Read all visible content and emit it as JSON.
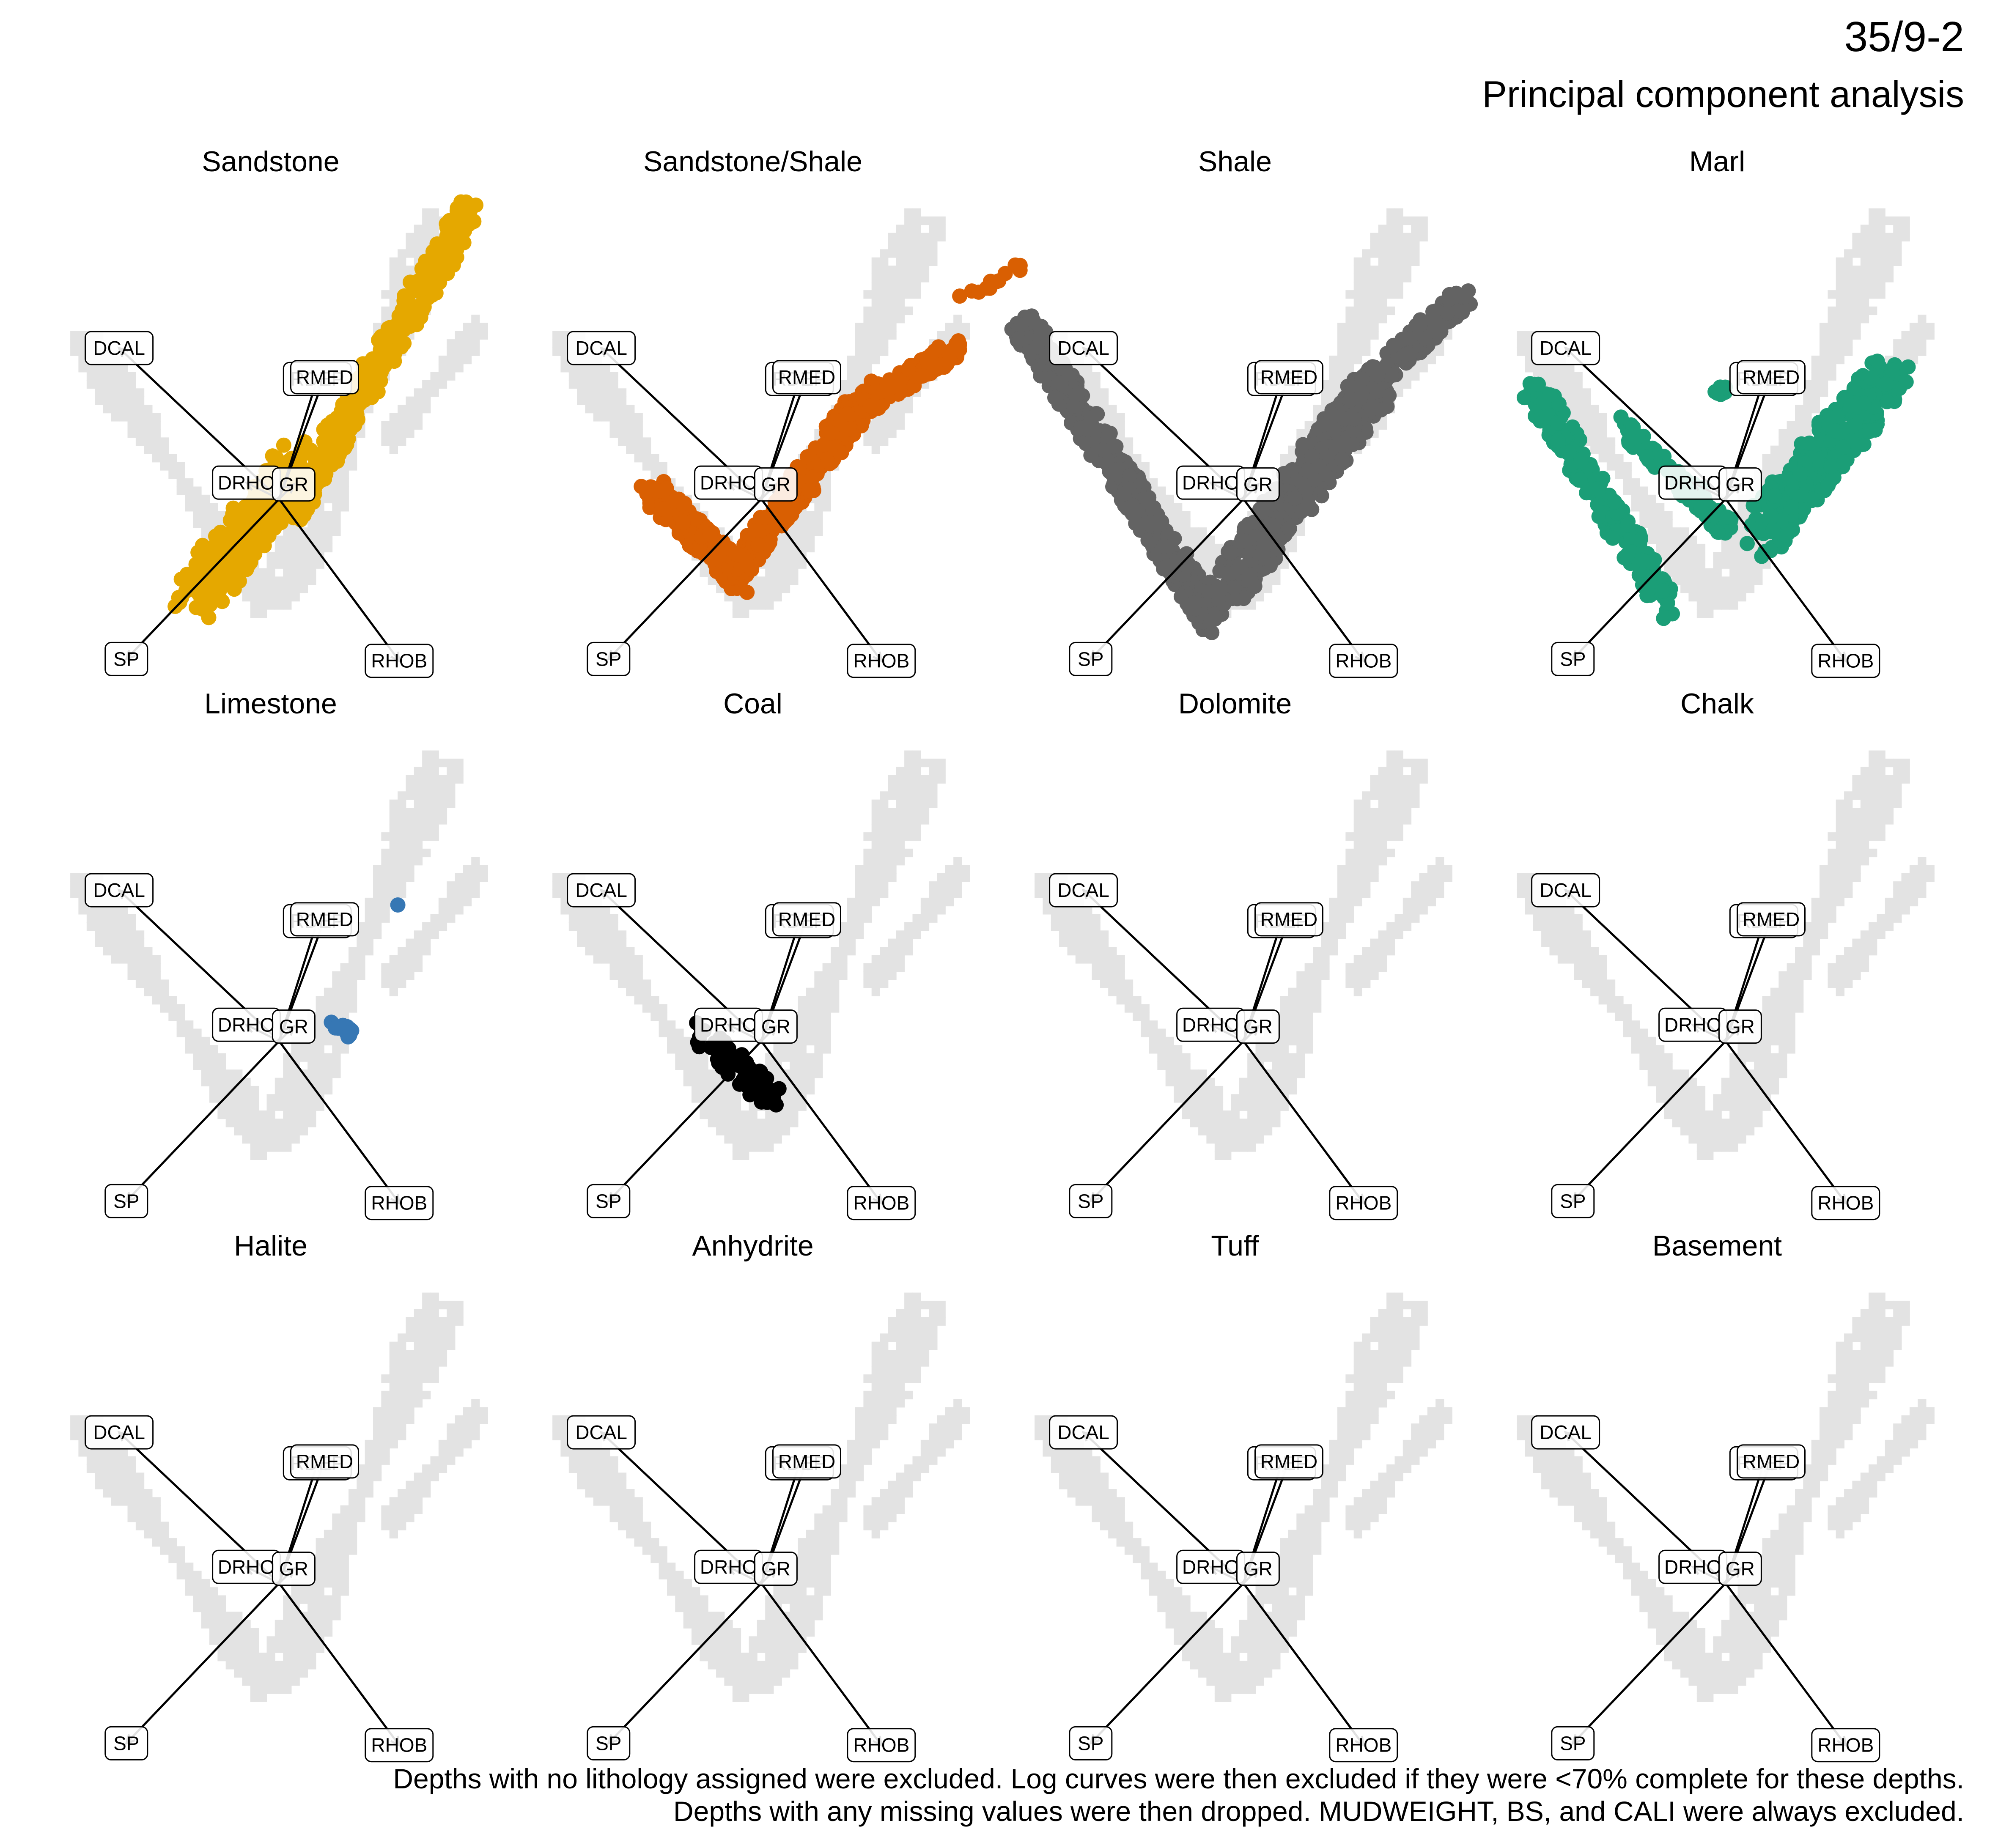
{
  "figure": {
    "well": "35/9-2",
    "subtitle": "Principal component analysis",
    "caption_lines": [
      "Depths with no lithology assigned were excluded. Log curves were then excluded if they were <70% complete for these depths.",
      "Depths with any missing values were then dropped. MUDWEIGHT, BS, and CALI were always excluded."
    ]
  },
  "chart_data": {
    "type": "scatter",
    "layout": "small multiples 3 rows x 4 columns",
    "background_style": "all samples shown as light grey binned points behind each panel",
    "colors": {
      "background": "#e3e3e3",
      "arrow": "#000000",
      "label_fill": "#ffffff",
      "label_border": "#000000"
    },
    "loadings": [
      {
        "name": "DCAL",
        "x": -0.88,
        "y": 0.83
      },
      {
        "name": "RDEP",
        "x": 0.21,
        "y": 0.66
      },
      {
        "name": "RMED",
        "x": 0.25,
        "y": 0.67
      },
      {
        "name": "DRHO",
        "x": -0.18,
        "y": 0.09
      },
      {
        "name": "GR",
        "x": 0.08,
        "y": 0.08
      },
      {
        "name": "SP",
        "x": -0.84,
        "y": -0.88
      },
      {
        "name": "RHOB",
        "x": 0.66,
        "y": -0.89
      }
    ],
    "background_cloud": {
      "left_arm": {
        "from": [
          -1.1,
          0.9
        ],
        "to": [
          -0.05,
          -0.6
        ],
        "half_width": 0.1
      },
      "right_arm": {
        "from": [
          0.0,
          -0.55
        ],
        "to": [
          0.9,
          1.55
        ],
        "half_width": 0.14
      },
      "side_arm": {
        "from": [
          0.6,
          0.3
        ],
        "to": [
          1.1,
          0.95
        ],
        "half_width": 0.06
      }
    },
    "panels": [
      {
        "title": "Sandstone",
        "color": "#e5a800",
        "clusters": [
          {
            "from": [
              -0.45,
              -0.55
            ],
            "to": [
              0.1,
              0.2
            ],
            "width": 0.14,
            "n": 260
          },
          {
            "from": [
              0.05,
              -0.1
            ],
            "to": [
              1.05,
              1.6
            ],
            "width": 0.08,
            "n": 320
          },
          {
            "from": [
              -0.4,
              -0.35
            ],
            "to": [
              -0.05,
              -0.1
            ],
            "width": 0.1,
            "n": 60
          }
        ]
      },
      {
        "title": "Sandstone/Shale",
        "color": "#d95f02",
        "clusters": [
          {
            "from": [
              -0.6,
              0.05
            ],
            "to": [
              -0.1,
              -0.45
            ],
            "width": 0.08,
            "n": 170
          },
          {
            "from": [
              -0.1,
              -0.35
            ],
            "to": [
              0.6,
              0.6
            ],
            "width": 0.08,
            "n": 240
          },
          {
            "from": [
              0.4,
              0.4
            ],
            "to": [
              1.1,
              0.85
            ],
            "width": 0.06,
            "n": 120
          },
          {
            "from": [
              1.1,
              1.1
            ],
            "to": [
              1.45,
              1.3
            ],
            "width": 0.03,
            "n": 12
          }
        ]
      },
      {
        "title": "Shale",
        "color": "#636363",
        "clusters": [
          {
            "from": [
              -1.2,
              0.95
            ],
            "to": [
              -0.15,
              -0.7
            ],
            "width": 0.08,
            "n": 520
          },
          {
            "from": [
              -0.1,
              -0.5
            ],
            "to": [
              0.7,
              0.6
            ],
            "width": 0.13,
            "n": 420
          },
          {
            "from": [
              0.6,
              0.55
            ],
            "to": [
              1.2,
              1.1
            ],
            "width": 0.07,
            "n": 160
          }
        ]
      },
      {
        "title": "Marl",
        "color": "#1b9e77",
        "clusters": [
          {
            "from": [
              -1.05,
              0.6
            ],
            "to": [
              -0.3,
              -0.6
            ],
            "width": 0.08,
            "n": 220
          },
          {
            "from": [
              -0.55,
              0.4
            ],
            "to": [
              0.05,
              -0.2
            ],
            "width": 0.06,
            "n": 90
          },
          {
            "from": [
              0.2,
              -0.2
            ],
            "to": [
              0.9,
              0.7
            ],
            "width": 0.14,
            "n": 300
          },
          {
            "from": [
              -0.05,
              0.55
            ],
            "to": [
              0.0,
              0.6
            ],
            "width": 0.04,
            "n": 8
          }
        ]
      },
      {
        "title": "Limestone",
        "color": "#3677b4",
        "clusters": [
          {
            "from": [
              0.3,
              0.1
            ],
            "to": [
              0.42,
              0.03
            ],
            "width": 0.03,
            "n": 10
          },
          {
            "from": [
              0.65,
              0.75
            ],
            "to": [
              0.65,
              0.75
            ],
            "width": 0.005,
            "n": 1
          }
        ]
      },
      {
        "title": "Coal",
        "color": "#000000",
        "clusters": [
          {
            "from": [
              -0.35,
              0.05
            ],
            "to": [
              0.1,
              -0.35
            ],
            "width": 0.07,
            "n": 60
          }
        ]
      },
      {
        "title": "Dolomite",
        "color": "#7570b3",
        "clusters": []
      },
      {
        "title": "Chalk",
        "color": "#e7298a",
        "clusters": []
      },
      {
        "title": "Halite",
        "color": "#66a61e",
        "clusters": []
      },
      {
        "title": "Anhydrite",
        "color": "#a6761d",
        "clusters": []
      },
      {
        "title": "Tuff",
        "color": "#1f78b4",
        "clusters": []
      },
      {
        "title": "Basement",
        "color": "#b15928",
        "clusters": []
      }
    ]
  }
}
